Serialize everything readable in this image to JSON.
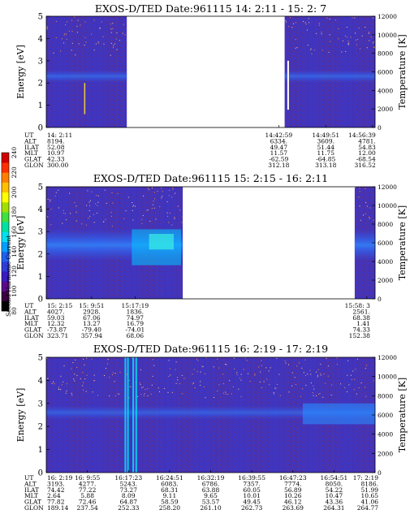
{
  "colorbar": {
    "label": "Second Harmonic Current",
    "ticks": [
      "80",
      "100",
      "120",
      "140",
      "160",
      "180",
      "200",
      "220",
      "240"
    ],
    "colors": [
      "#000000",
      "#3a0040",
      "#5a0a8a",
      "#3a1cc0",
      "#2f3cd8",
      "#2060f0",
      "#00a0ff",
      "#00e0f0",
      "#00e0a0",
      "#40e040",
      "#a0e000",
      "#ffff00",
      "#ffc000",
      "#ff8000",
      "#ff3000",
      "#d00000"
    ]
  },
  "panels": [
    {
      "title": "EXOS-D/TED   Date:961115  14: 2:11 - 15: 2: 7",
      "ylabel_left": "Energy [eV]",
      "ylabel_right": "Temperature [K]",
      "yticks_left": [
        "0",
        "1",
        "2",
        "3",
        "4",
        "5"
      ],
      "yticks_right": [
        "0",
        "2000",
        "4000",
        "6000",
        "8000",
        "10000",
        "12000"
      ],
      "ephem_labels": [
        "UT",
        "ALT",
        "ILAT",
        "MLT",
        "GLAT",
        "GLON"
      ],
      "ephem_cols": [
        {
          "pos": 0.0,
          "vals": [
            "14: 2:11",
            "8194.",
            "52.08",
            "10.97",
            "42.33",
            "300.00"
          ]
        },
        {
          "pos": 0.707,
          "vals": [
            "14:42:59",
            "6334.",
            "49.47",
            "11.57",
            "-62.59",
            "312.18"
          ]
        },
        {
          "pos": 0.85,
          "vals": [
            "14:49:51",
            "3609.",
            "51.44",
            "11.75",
            "-64.85",
            "313.18"
          ]
        },
        {
          "pos": 0.992,
          "vals": [
            "14:56:39",
            "4781.",
            "54.83",
            "12.00",
            "-68.54",
            "316.52"
          ]
        }
      ],
      "data_segments": [
        [
          0.0,
          0.245
        ],
        [
          0.725,
          1.0
        ]
      ],
      "band": {
        "center": 2.3,
        "width": 0.55,
        "intensity": 0.55
      }
    },
    {
      "title": "EXOS-D/TED   Date:961115  15: 2:15 - 16: 2:11",
      "ylabel_left": "Energy [eV]",
      "ylabel_right": "Temperature [K]",
      "yticks_left": [
        "0",
        "1",
        "2",
        "3",
        "4",
        "5"
      ],
      "yticks_right": [
        "0",
        "2000",
        "4000",
        "6000",
        "8000",
        "10000",
        "12000"
      ],
      "ephem_labels": [
        "UT",
        "ALT",
        "ILAT",
        "MLT",
        "GLAT",
        "GLON"
      ],
      "ephem_cols": [
        {
          "pos": 0.0,
          "vals": [
            "15: 2:15",
            "4027.",
            "59.03",
            "12.32",
            "-73.87",
            "323.71"
          ]
        },
        {
          "pos": 0.138,
          "vals": [
            "15: 9:51",
            "2928.",
            "67.06",
            "13.27",
            "-79.40",
            "357.94"
          ]
        },
        {
          "pos": 0.27,
          "vals": [
            "15:17:19",
            "1836.",
            "74.97",
            "16.79",
            "-74.01",
            "68.06"
          ]
        },
        {
          "pos": 0.975,
          "vals": [
            "15:58: 3",
            "2561.",
            "68.38",
            "1.41",
            "74.33",
            "152.38"
          ]
        }
      ],
      "data_segments": [
        [
          0.0,
          0.415
        ],
        [
          0.938,
          1.0
        ]
      ],
      "band": {
        "center": 2.4,
        "width": 1.4,
        "intensity": 0.8
      }
    },
    {
      "title": "EXOS-D/TED   Date:961115  16: 2:19 - 17: 2:19",
      "ylabel_left": "Energy [eV]",
      "ylabel_right": "Temperature [K]",
      "yticks_left": [
        "0",
        "1",
        "2",
        "3",
        "4",
        "5"
      ],
      "yticks_right": [
        "0",
        "2000",
        "4000",
        "6000",
        "8000",
        "10000",
        "12000"
      ],
      "ephem_labels": [
        "UT",
        "ALT",
        "ILAT",
        "MLT",
        "GLAT",
        "GLON"
      ],
      "ephem_cols": [
        {
          "pos": 0.0,
          "vals": [
            "16: 2:19",
            "3193.",
            "74.42",
            "2.64",
            "77.82",
            "189.14"
          ]
        },
        {
          "pos": 0.125,
          "vals": [
            "16: 9:55",
            "4277.",
            "77.22",
            "5.88",
            "72.46",
            "237.54"
          ]
        },
        {
          "pos": 0.25,
          "vals": [
            "16:17:23",
            "5243.",
            "73.27",
            "8.09",
            "64.87",
            "252.33"
          ]
        },
        {
          "pos": 0.375,
          "vals": [
            "16:24:51",
            "6083.",
            "68.31",
            "9.11",
            "58.59",
            "258.20"
          ]
        },
        {
          "pos": 0.5,
          "vals": [
            "16:32:19",
            "6786.",
            "63.88",
            "9.65",
            "53.57",
            "261.10"
          ]
        },
        {
          "pos": 0.625,
          "vals": [
            "16:39:55",
            "7357.",
            "60.05",
            "10.01",
            "49.45",
            "262.73"
          ]
        },
        {
          "pos": 0.75,
          "vals": [
            "16:47:23",
            "7774.",
            "56.89",
            "10.26",
            "46.12",
            "263.69"
          ]
        },
        {
          "pos": 0.875,
          "vals": [
            "16:54:51",
            "8050.",
            "54.22",
            "10.47",
            "43.36",
            "264.31"
          ]
        },
        {
          "pos": 1.0,
          "vals": [
            "17: 2:19",
            "8186.",
            "51.99",
            "10.65",
            "41.06",
            "264.77"
          ]
        }
      ],
      "data_segments": [
        [
          0.0,
          1.0
        ]
      ],
      "band": {
        "center": 2.6,
        "width": 0.6,
        "intensity": 0.5
      }
    }
  ]
}
